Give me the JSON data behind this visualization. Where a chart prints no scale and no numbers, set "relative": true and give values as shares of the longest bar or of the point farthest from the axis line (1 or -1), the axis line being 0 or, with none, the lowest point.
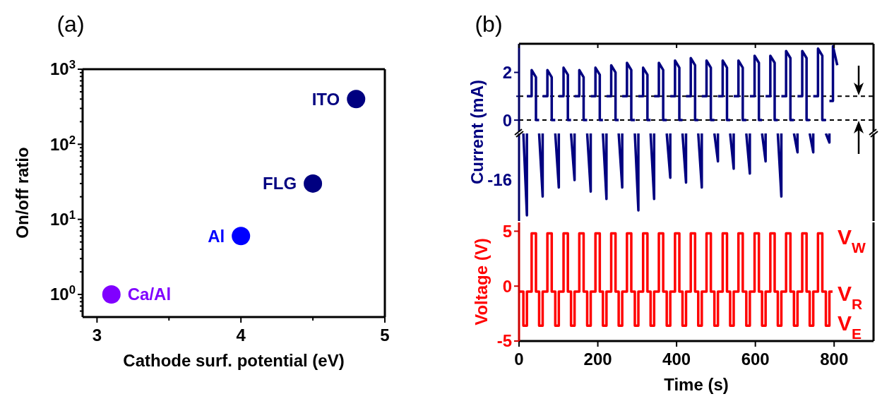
{
  "chart_data": [
    {
      "type": "scatter",
      "title": "(a)",
      "xlabel": "Cathode surf. potential (eV)",
      "ylabel": "On/off ratio",
      "log": "y",
      "marker": "circle",
      "xlim": [
        2.9,
        5
      ],
      "xticks": [
        3,
        {
          "value": 3.5,
          "label": null
        },
        4,
        {
          "value": 4.5,
          "label": null
        },
        5
      ],
      "ylim": [
        0.5,
        1000
      ],
      "yticks": [
        {
          "value": 0.6,
          "label": null
        },
        {
          "value": 0.7,
          "label": null
        },
        {
          "value": 0.8,
          "label": null
        },
        {
          "value": 0.9,
          "label": null
        },
        {
          "value": 1,
          "label": "10$^{0}$"
        },
        {
          "value": 2,
          "label": null
        },
        {
          "value": 3,
          "label": null
        },
        {
          "value": 4,
          "label": null
        },
        {
          "value": 5,
          "label": null
        },
        {
          "value": 6,
          "label": null
        },
        {
          "value": 7,
          "label": null
        },
        {
          "value": 8,
          "label": null
        },
        {
          "value": 9,
          "label": null
        },
        {
          "value": 10,
          "label": "10$^{1}$"
        },
        {
          "value": 20,
          "label": null
        },
        {
          "value": 30,
          "label": null
        },
        {
          "value": 40,
          "label": null
        },
        {
          "value": 50,
          "label": null
        },
        {
          "value": 60,
          "label": null
        },
        {
          "value": 70,
          "label": null
        },
        {
          "value": 80,
          "label": null
        },
        {
          "value": 90,
          "label": null
        },
        {
          "value": 100,
          "label": "10$^{2}$"
        },
        {
          "value": 200,
          "label": null
        },
        {
          "value": 300,
          "label": null
        },
        {
          "value": 400,
          "label": null
        },
        {
          "value": 500,
          "label": null
        },
        {
          "value": 600,
          "label": null
        },
        {
          "value": 700,
          "label": null
        },
        {
          "value": 800,
          "label": null
        },
        {
          "value": 900,
          "label": null
        },
        {
          "value": 1000,
          "label": "10$^{3}$"
        }
      ],
      "series": [
        {
          "name": "Ca/Al",
          "color": "#8000ff",
          "x": [
            3.1
          ],
          "values": [
            1
          ]
        },
        {
          "name": "Al",
          "color": "#0000ff",
          "x": [
            4.0
          ],
          "values": [
            6
          ]
        },
        {
          "name": "FLG",
          "color": "#000080",
          "x": [
            4.5
          ],
          "values": [
            30
          ]
        },
        {
          "name": "ITO",
          "color": "#000080",
          "x": [
            4.8
          ],
          "values": [
            400
          ]
        }
      ]
    },
    {
      "type": "line",
      "title": "(b)",
      "ylabel": "Current (mA)",
      "tick_labels": "y",
      "xlim": [
        0,
        900
      ],
      "xticks": [
        0,
        200,
        400,
        600,
        800
      ],
      "ylim": [
        -0.5,
        3.2
      ],
      "yticks": [
        0,
        {
          "value": 1,
          "label": null
        },
        2
      ],
      "ref_lines": [
        {
          "axis": "y",
          "value": 0,
          "color": "#000000",
          "line_style": "dashed"
        },
        {
          "axis": "y",
          "value": 1,
          "color": "#000000",
          "line_style": "dashed"
        }
      ],
      "series": [
        {
          "color": "#000080",
          "x": [
            20,
            32,
            32,
            43,
            43,
            51,
            55,
            60,
            72,
            72,
            83,
            83,
            92,
            96,
            101,
            113,
            113,
            124,
            124,
            132,
            136,
            141,
            153,
            153,
            164,
            164,
            173,
            177,
            182,
            194,
            194,
            205,
            205,
            213,
            217,
            222,
            234,
            234,
            245,
            245,
            253,
            257,
            262,
            274,
            274,
            285,
            285,
            294,
            298,
            303,
            315,
            315,
            326,
            326,
            334,
            338,
            343,
            355,
            355,
            366,
            366,
            375,
            379,
            384,
            396,
            396,
            407,
            407,
            415,
            419,
            424,
            436,
            436,
            447,
            447,
            455,
            459,
            464,
            476,
            476,
            487,
            487,
            496,
            500,
            505,
            517,
            517,
            528,
            528,
            536,
            540,
            545,
            557,
            557,
            568,
            568,
            577,
            581,
            586,
            598,
            598,
            609,
            609,
            617,
            621,
            626,
            638,
            638,
            649,
            649,
            657,
            661,
            666,
            678,
            678,
            689,
            689,
            698,
            702,
            707,
            719,
            719,
            730,
            730,
            738,
            742,
            747,
            759,
            759,
            770,
            770,
            779,
            783,
            788,
            797,
            797,
            808
          ],
          "values": [
            1,
            1,
            2.1,
            1.8,
            0,
            0,
            null,
            1,
            1,
            2.1,
            1.8,
            0,
            0,
            null,
            1,
            1,
            2.2,
            1.9,
            0,
            0,
            null,
            1,
            1,
            2.1,
            1.8,
            0,
            0,
            null,
            1,
            1,
            2.2,
            1.9,
            0,
            0,
            null,
            1,
            1,
            2.3,
            2.0,
            0,
            0,
            null,
            1,
            1,
            2.4,
            2.1,
            0,
            0,
            null,
            1,
            1,
            2.2,
            1.9,
            0,
            0,
            null,
            1,
            1,
            2.4,
            2.1,
            0,
            0,
            null,
            1,
            1,
            2.5,
            2.2,
            0,
            0,
            null,
            1,
            1,
            2.6,
            2.3,
            0,
            0,
            null,
            1,
            1,
            2.5,
            2.2,
            0,
            0,
            null,
            1,
            1,
            2.5,
            2.2,
            0,
            0,
            null,
            1,
            1,
            2.5,
            2.2,
            0,
            0,
            null,
            1,
            1,
            2.7,
            2.4,
            0,
            0,
            null,
            1,
            1,
            2.7,
            2.4,
            0,
            0,
            null,
            1,
            1,
            2.9,
            2.6,
            0,
            0,
            null,
            1,
            1,
            2.9,
            2.6,
            0,
            0,
            null,
            1,
            1,
            3.0,
            2.7,
            0,
            0,
            null,
            0.8,
            0.8,
            3.1,
            2.3
          ]
        }
      ]
    },
    {
      "type": "line",
      "relative": true,
      "xlim": [
        0,
        900
      ],
      "annotations": [
        "-16"
      ],
      "series": [
        {
          "color": "#000080",
          "x": [
            11,
            20,
            20,
            22,
            51,
            60,
            60,
            62,
            92,
            101,
            101,
            103,
            132,
            141,
            141,
            143,
            173,
            182,
            182,
            184,
            213,
            222,
            222,
            224,
            253,
            262,
            262,
            264,
            294,
            303,
            303,
            305,
            334,
            343,
            343,
            345,
            375,
            384,
            384,
            386,
            415,
            424,
            424,
            426,
            455,
            464,
            464,
            466,
            496,
            505,
            505,
            507,
            536,
            545,
            545,
            547,
            577,
            586,
            586,
            588,
            617,
            626,
            626,
            628,
            657,
            666,
            666,
            668,
            698,
            707,
            707,
            709,
            738,
            747,
            747,
            749,
            779,
            788,
            788
          ],
          "values": [
            1,
            0,
            1,
            null,
            1,
            0.23,
            1,
            null,
            1,
            0.34,
            1,
            null,
            1,
            0.43,
            1,
            null,
            1,
            0.29,
            1,
            null,
            1,
            0.2,
            1,
            null,
            1,
            0.34,
            1,
            null,
            1,
            0.06,
            1,
            null,
            1,
            0.2,
            1,
            null,
            1,
            0.46,
            1,
            null,
            1,
            0.4,
            1,
            null,
            1,
            0.34,
            1,
            null,
            1,
            0.66,
            1,
            null,
            1,
            0.57,
            1,
            null,
            1,
            0.51,
            1,
            null,
            1,
            0.66,
            1,
            null,
            1,
            0.23,
            1,
            null,
            1,
            0.77,
            1,
            null,
            1,
            0.77,
            1,
            null,
            1,
            0.89,
            1
          ]
        }
      ]
    },
    {
      "type": "step",
      "xlabel": "Time (s)",
      "ylabel": "Voltage (V)",
      "xlim": [
        0,
        900
      ],
      "xticks": [
        0,
        200,
        400,
        600,
        800
      ],
      "ylim": [
        -5,
        5.8
      ],
      "yticks": [
        -5,
        0,
        5
      ],
      "annotations": [
        "V$_{W}$",
        "V$_{R}$",
        "V$_{E}$"
      ],
      "series": [
        {
          "color": "#ff0000",
          "x": [
            0,
            11,
            20,
            32,
            43,
            51,
            60,
            72,
            83,
            92,
            101,
            113,
            124,
            132,
            141,
            153,
            164,
            173,
            182,
            194,
            205,
            213,
            222,
            234,
            245,
            253,
            262,
            274,
            285,
            294,
            303,
            315,
            326,
            334,
            343,
            355,
            366,
            375,
            384,
            396,
            407,
            415,
            424,
            436,
            447,
            455,
            464,
            476,
            487,
            496,
            505,
            517,
            528,
            536,
            545,
            557,
            568,
            577,
            586,
            598,
            609,
            617,
            626,
            638,
            649,
            657,
            666,
            678,
            689,
            698,
            707,
            719,
            730,
            738,
            747,
            759,
            770,
            779,
            788,
            796
          ],
          "values": [
            -0.5,
            -3.6,
            -0.5,
            4.8,
            -0.5,
            -3.6,
            -0.5,
            4.8,
            -0.5,
            -3.6,
            -0.5,
            4.8,
            -0.5,
            -3.6,
            -0.5,
            4.8,
            -0.5,
            -3.6,
            -0.5,
            4.8,
            -0.5,
            -3.6,
            -0.5,
            4.8,
            -0.5,
            -3.6,
            -0.5,
            4.8,
            -0.5,
            -3.6,
            -0.5,
            4.8,
            -0.5,
            -3.6,
            -0.5,
            4.8,
            -0.5,
            -3.6,
            -0.5,
            4.8,
            -0.5,
            -3.6,
            -0.5,
            4.8,
            -0.5,
            -3.6,
            -0.5,
            4.8,
            -0.5,
            -3.6,
            -0.5,
            4.8,
            -0.5,
            -3.6,
            -0.5,
            4.8,
            -0.5,
            -3.6,
            -0.5,
            4.8,
            -0.5,
            -3.6,
            -0.5,
            4.8,
            -0.5,
            -3.6,
            -0.5,
            4.8,
            -0.5,
            -3.6,
            -0.5,
            4.8,
            -0.5,
            -3.6,
            -0.5,
            4.8,
            -0.5,
            -3.6,
            -0.5,
            -0.5
          ]
        }
      ]
    }
  ]
}
